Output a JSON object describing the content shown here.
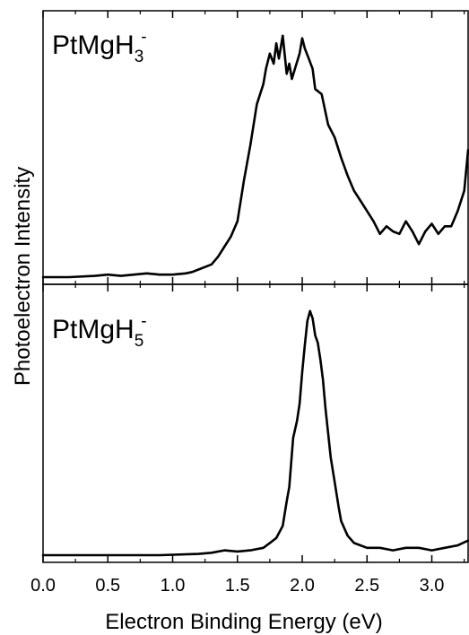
{
  "chart_data": [
    {
      "type": "line",
      "panel_label": {
        "base": "PtMgH",
        "subscript": "3",
        "superscript": "-"
      },
      "xlim": [
        0.0,
        3.28
      ],
      "x": [
        0.0,
        0.2,
        0.4,
        0.5,
        0.6,
        0.7,
        0.8,
        0.9,
        1.0,
        1.1,
        1.15,
        1.2,
        1.25,
        1.3,
        1.35,
        1.4,
        1.45,
        1.5,
        1.55,
        1.6,
        1.65,
        1.7,
        1.72,
        1.75,
        1.78,
        1.8,
        1.82,
        1.85,
        1.88,
        1.9,
        1.92,
        1.95,
        1.98,
        2.0,
        2.02,
        2.05,
        2.08,
        2.1,
        2.15,
        2.2,
        2.25,
        2.3,
        2.35,
        2.4,
        2.45,
        2.5,
        2.55,
        2.6,
        2.65,
        2.7,
        2.75,
        2.8,
        2.85,
        2.9,
        2.95,
        3.0,
        3.05,
        3.1,
        3.15,
        3.2,
        3.25,
        3.28
      ],
      "y": [
        0.0,
        0.0,
        0.005,
        0.01,
        0.005,
        0.01,
        0.015,
        0.01,
        0.01,
        0.015,
        0.02,
        0.03,
        0.04,
        0.05,
        0.08,
        0.12,
        0.16,
        0.22,
        0.38,
        0.52,
        0.68,
        0.76,
        0.82,
        0.88,
        0.84,
        0.92,
        0.86,
        0.95,
        0.8,
        0.84,
        0.78,
        0.83,
        0.88,
        0.94,
        0.9,
        0.86,
        0.82,
        0.74,
        0.72,
        0.6,
        0.55,
        0.47,
        0.4,
        0.34,
        0.3,
        0.26,
        0.22,
        0.17,
        0.2,
        0.18,
        0.17,
        0.22,
        0.18,
        0.13,
        0.18,
        0.21,
        0.17,
        0.2,
        0.2,
        0.26,
        0.34,
        0.5
      ],
      "ylim": [
        0,
        1.02
      ]
    },
    {
      "type": "line",
      "panel_label": {
        "base": "PtMgH",
        "subscript": "5",
        "superscript": "-"
      },
      "xlim": [
        0.0,
        3.28
      ],
      "x": [
        0.0,
        0.3,
        0.6,
        0.9,
        1.2,
        1.3,
        1.4,
        1.5,
        1.6,
        1.7,
        1.75,
        1.8,
        1.85,
        1.88,
        1.9,
        1.93,
        1.96,
        1.98,
        2.0,
        2.02,
        2.04,
        2.06,
        2.08,
        2.1,
        2.12,
        2.14,
        2.16,
        2.18,
        2.2,
        2.22,
        2.25,
        2.28,
        2.3,
        2.35,
        2.4,
        2.45,
        2.5,
        2.6,
        2.7,
        2.8,
        2.9,
        3.0,
        3.1,
        3.2,
        3.28
      ],
      "y": [
        0.0,
        0.0,
        0.0,
        0.0,
        0.005,
        0.01,
        0.02,
        0.015,
        0.02,
        0.03,
        0.05,
        0.07,
        0.12,
        0.22,
        0.28,
        0.48,
        0.55,
        0.62,
        0.75,
        0.86,
        0.96,
        1.0,
        0.97,
        0.9,
        0.87,
        0.8,
        0.72,
        0.6,
        0.5,
        0.4,
        0.3,
        0.2,
        0.14,
        0.08,
        0.05,
        0.04,
        0.03,
        0.03,
        0.02,
        0.03,
        0.03,
        0.02,
        0.03,
        0.04,
        0.06
      ],
      "ylim": [
        0,
        1.08
      ]
    }
  ],
  "axes": {
    "xlabel": "Electron Binding Energy (eV)",
    "ylabel": "Photoelectron Intensity",
    "xticks": [
      "0.0",
      "0.5",
      "1.0",
      "1.5",
      "2.0",
      "2.5",
      "3.0"
    ],
    "xtick_values": [
      0.0,
      0.5,
      1.0,
      1.5,
      2.0,
      2.5,
      3.0
    ]
  },
  "colors": {
    "line": "#000000",
    "frame": "#000000",
    "background": "#ffffff"
  }
}
